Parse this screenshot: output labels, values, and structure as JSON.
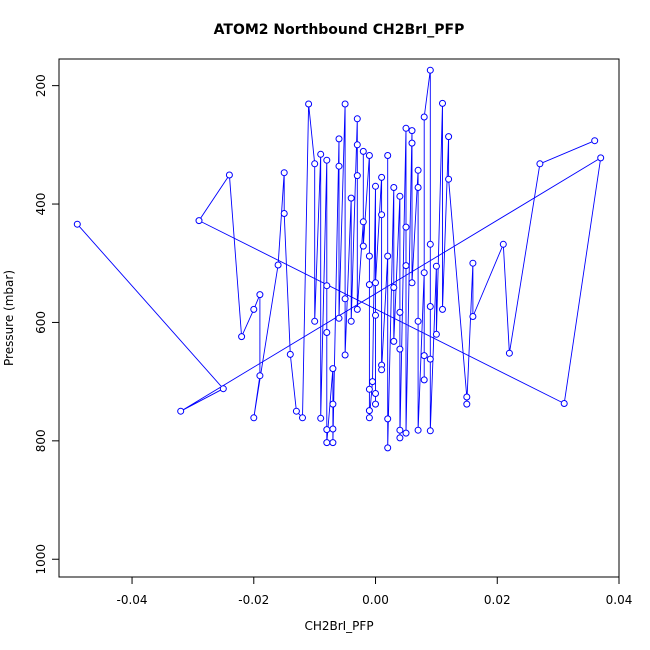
{
  "chart_data": {
    "type": "line",
    "title": "ATOM2 Northbound CH2BrI_PFP",
    "xlabel": "CH2BrI_PFP",
    "ylabel": "Pressure (mbar)",
    "xlim": [
      -0.052,
      0.04
    ],
    "ylim": [
      1030,
      155
    ],
    "y_reversed": true,
    "x_ticks": [
      -0.04,
      -0.02,
      0.0,
      0.02,
      0.04
    ],
    "x_tick_labels": [
      "-0.04",
      "-0.02",
      "0.00",
      "0.02",
      "0.04"
    ],
    "y_ticks": [
      200,
      400,
      600,
      800,
      1000
    ],
    "y_tick_labels": [
      "200",
      "400",
      "600",
      "800",
      "1000"
    ],
    "grid": false,
    "series": [
      {
        "color": "#0000ff",
        "marker": "open-circle",
        "points": [
          [
            -0.049,
            434
          ],
          [
            -0.025,
            712
          ],
          [
            -0.032,
            750
          ],
          [
            0.037,
            322
          ],
          [
            0.031,
            737
          ],
          [
            -0.029,
            428
          ],
          [
            -0.024,
            351
          ],
          [
            -0.022,
            624
          ],
          [
            -0.02,
            578
          ],
          [
            -0.019,
            553
          ],
          [
            -0.019,
            690
          ],
          [
            -0.02,
            761
          ],
          [
            -0.016,
            503
          ],
          [
            -0.015,
            347
          ],
          [
            -0.015,
            416
          ],
          [
            -0.014,
            654
          ],
          [
            -0.013,
            750
          ],
          [
            -0.012,
            761
          ],
          [
            -0.011,
            231
          ],
          [
            -0.01,
            332
          ],
          [
            -0.01,
            598
          ],
          [
            -0.009,
            316
          ],
          [
            -0.009,
            762
          ],
          [
            -0.008,
            326
          ],
          [
            -0.008,
            538
          ],
          [
            -0.008,
            617
          ],
          [
            -0.008,
            781
          ],
          [
            -0.008,
            803
          ],
          [
            -0.007,
            678
          ],
          [
            -0.007,
            738
          ],
          [
            -0.007,
            780
          ],
          [
            -0.007,
            803
          ],
          [
            -0.006,
            290
          ],
          [
            -0.006,
            336
          ],
          [
            -0.006,
            593
          ],
          [
            -0.005,
            231
          ],
          [
            -0.005,
            560
          ],
          [
            -0.005,
            655
          ],
          [
            -0.004,
            390
          ],
          [
            -0.004,
            598
          ],
          [
            -0.003,
            256
          ],
          [
            -0.003,
            300
          ],
          [
            -0.003,
            352
          ],
          [
            -0.003,
            578
          ],
          [
            -0.002,
            430
          ],
          [
            -0.002,
            311
          ],
          [
            -0.002,
            471
          ],
          [
            -0.001,
            318
          ],
          [
            -0.001,
            488
          ],
          [
            -0.001,
            536
          ],
          [
            -0.001,
            713
          ],
          [
            -0.001,
            749
          ],
          [
            -0.001,
            761
          ],
          [
            -0.0005,
            700
          ],
          [
            0.0,
            370
          ],
          [
            0.0,
            720
          ],
          [
            0.0,
            738
          ],
          [
            0.0,
            588
          ],
          [
            0.0,
            533
          ],
          [
            0.001,
            355
          ],
          [
            0.001,
            418
          ],
          [
            0.001,
            672
          ],
          [
            0.001,
            680
          ],
          [
            0.002,
            488
          ],
          [
            0.002,
            318
          ],
          [
            0.002,
            763
          ],
          [
            0.002,
            812
          ],
          [
            0.003,
            372
          ],
          [
            0.003,
            541
          ],
          [
            0.003,
            632
          ],
          [
            0.004,
            387
          ],
          [
            0.004,
            583
          ],
          [
            0.004,
            645
          ],
          [
            0.004,
            782
          ],
          [
            0.004,
            795
          ],
          [
            0.005,
            272
          ],
          [
            0.005,
            439
          ],
          [
            0.005,
            504
          ],
          [
            0.005,
            787
          ],
          [
            0.006,
            276
          ],
          [
            0.006,
            297
          ],
          [
            0.006,
            533
          ],
          [
            0.007,
            343
          ],
          [
            0.007,
            598
          ],
          [
            0.007,
            372
          ],
          [
            0.007,
            782
          ],
          [
            0.008,
            516
          ],
          [
            0.008,
            656
          ],
          [
            0.008,
            697
          ],
          [
            0.008,
            253
          ],
          [
            0.009,
            174
          ],
          [
            0.009,
            468
          ],
          [
            0.009,
            573
          ],
          [
            0.009,
            662
          ],
          [
            0.009,
            783
          ],
          [
            0.01,
            505
          ],
          [
            0.01,
            620
          ],
          [
            0.011,
            230
          ],
          [
            0.011,
            578
          ],
          [
            0.012,
            286
          ],
          [
            0.012,
            358
          ],
          [
            0.015,
            726
          ],
          [
            0.015,
            738
          ],
          [
            0.016,
            500
          ],
          [
            0.016,
            590
          ],
          [
            0.021,
            468
          ],
          [
            0.022,
            652
          ],
          [
            0.027,
            332
          ],
          [
            0.036,
            293
          ]
        ]
      }
    ]
  }
}
